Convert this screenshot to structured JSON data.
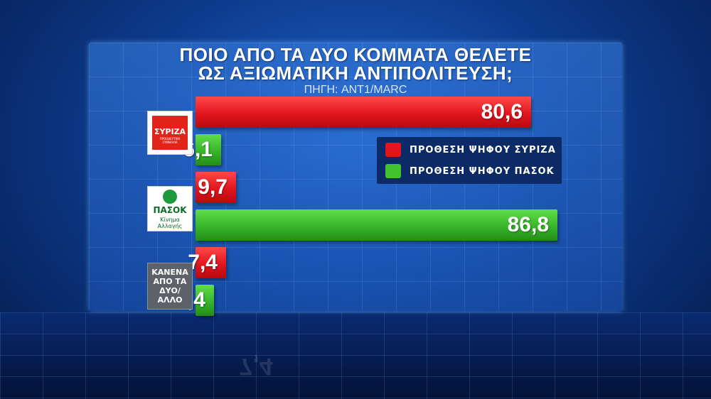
{
  "chart_data": {
    "type": "bar",
    "orientation": "horizontal",
    "title": "ΠΟΙΟ ΑΠΟ ΤΑ ΔΥΟ ΚΟΜΜΑΤΑ ΘΕΛΕΤΕ ΩΣ ΑΞΙΩΜΑΤΙΚΗ ΑΝΤΙΠΟΛΙΤΕΥΣΗ;",
    "title_line1": "ΠΟΙΟ ΑΠΟ ΤΑ ΔΥΟ ΚΟΜΜΑΤΑ ΘΕΛΕΤΕ",
    "title_line2": "ΩΣ ΑΞΙΩΜΑΤΙΚΗ ΑΝΤΙΠΟΛΙΤΕΥΣΗ;",
    "source": "ΠΗΓΗ: ANT1/MARC",
    "categories": [
      "ΣΥΡΙΖΑ",
      "ΠΑΣΟΚ",
      "ΚΑΝΕΝΑ ΑΠΟ ΤΑ ΔΥΟ/ ΑΛΛΟ"
    ],
    "series": [
      {
        "name": "ΠΡΟΘΕΣΗ ΨΗΦΟΥ ΣΥΡΙΖΑ",
        "color": "#e1151d",
        "values": [
          80.6,
          9.7,
          7.4
        ],
        "labels": [
          "80,6",
          "9,7",
          "7,4"
        ]
      },
      {
        "name": "ΠΡΟΘΕΣΗ ΨΗΦΟΥ ΠΑΣΟΚ",
        "color": "#43c22f",
        "values": [
          6.1,
          86.8,
          4.4
        ],
        "labels": [
          "6,1",
          "86,8",
          "4,4"
        ]
      }
    ],
    "xlim": [
      0,
      100
    ],
    "legend_position": "right",
    "grid": true
  },
  "logos": {
    "syriza": {
      "name": "ΣΥΡΙΖΑ",
      "subtitle": "ΠΡΟΟΔΕΥΤΙΚΗ ΣΥΜΜΑΧΙΑ"
    },
    "pasok": {
      "name": "ΠΑΣΟΚ",
      "subtitle": "Κίνημα Αλλαγής"
    },
    "none_label": "ΚΑΝΕΝΑ\nΑΠΟ ΤΑ\nΔΥΟ/ ΑΛΛΟ"
  },
  "reflection_text": "7,4"
}
